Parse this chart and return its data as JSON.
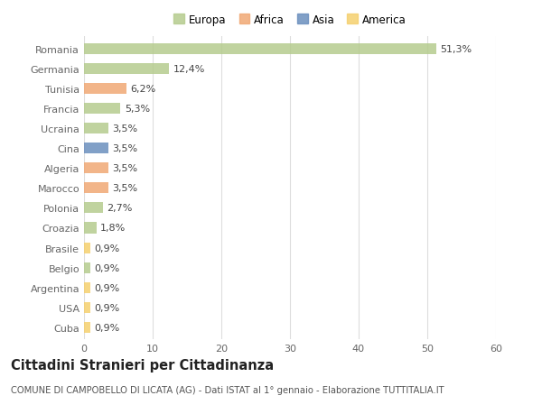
{
  "countries": [
    "Romania",
    "Germania",
    "Tunisia",
    "Francia",
    "Ucraina",
    "Cina",
    "Algeria",
    "Marocco",
    "Polonia",
    "Croazia",
    "Brasile",
    "Belgio",
    "Argentina",
    "USA",
    "Cuba"
  ],
  "values": [
    51.3,
    12.4,
    6.2,
    5.3,
    3.5,
    3.5,
    3.5,
    3.5,
    2.7,
    1.8,
    0.9,
    0.9,
    0.9,
    0.9,
    0.9
  ],
  "labels": [
    "51,3%",
    "12,4%",
    "6,2%",
    "5,3%",
    "3,5%",
    "3,5%",
    "3,5%",
    "3,5%",
    "2,7%",
    "1,8%",
    "0,9%",
    "0,9%",
    "0,9%",
    "0,9%",
    "0,9%"
  ],
  "continents": [
    "Europa",
    "Europa",
    "Africa",
    "Europa",
    "Europa",
    "Asia",
    "Africa",
    "Africa",
    "Europa",
    "Europa",
    "America",
    "Europa",
    "America",
    "America",
    "America"
  ],
  "colors": {
    "Europa": "#b5cc8e",
    "Africa": "#f0a875",
    "Asia": "#6b8fbe",
    "America": "#f5d06e"
  },
  "xlim": [
    0,
    60
  ],
  "xticks": [
    0,
    10,
    20,
    30,
    40,
    50,
    60
  ],
  "background_color": "#ffffff",
  "grid_color": "#dddddd",
  "title": "Cittadini Stranieri per Cittadinanza",
  "subtitle": "COMUNE DI CAMPOBELLO DI LICATA (AG) - Dati ISTAT al 1° gennaio - Elaborazione TUTTITALIA.IT",
  "bar_height": 0.55,
  "ytick_fontsize": 8.0,
  "xtick_fontsize": 8.0,
  "label_fontsize": 8.0,
  "legend_fontsize": 8.5,
  "title_fontsize": 10.5,
  "subtitle_fontsize": 7.2
}
